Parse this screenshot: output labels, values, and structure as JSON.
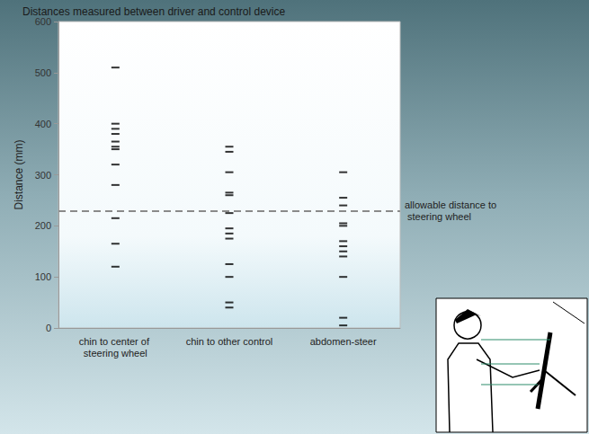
{
  "chart_data": {
    "type": "scatter",
    "title": "Distances measured between driver and control device",
    "y_label": "Distance (mm)",
    "categories": [
      "chin to center of steering wheel",
      "chin to other control",
      "abdomen-steer"
    ],
    "values": [
      [
        510,
        400,
        390,
        380,
        365,
        355,
        350,
        320,
        280,
        215,
        165,
        120
      ],
      [
        355,
        345,
        305,
        265,
        260,
        225,
        195,
        185,
        175,
        125,
        100,
        50,
        40
      ],
      [
        305,
        255,
        240,
        205,
        200,
        170,
        160,
        150,
        140,
        100,
        20,
        5
      ]
    ],
    "color": "#000000",
    "marker": "dash",
    "ylim": [
      0,
      600
    ],
    "yticks": [
      0,
      100,
      200,
      300,
      400,
      500,
      600
    ],
    "grid": false,
    "annotations": [
      {
        "text": "allowable distance to steering wheel",
        "y": 230,
        "line_style": "dashed"
      }
    ]
  }
}
